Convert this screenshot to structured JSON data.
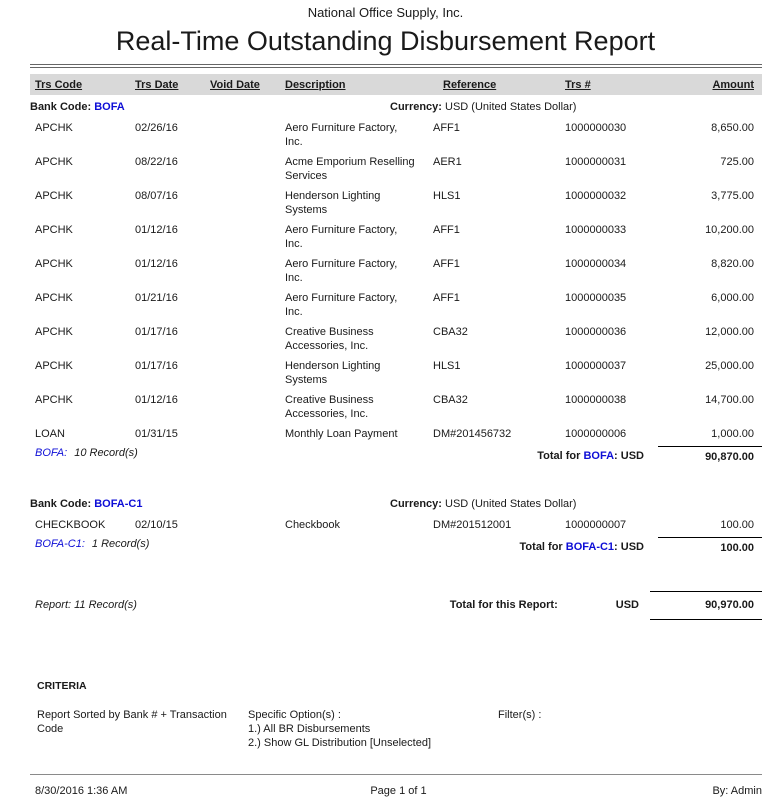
{
  "header": {
    "company": "National Office Supply, Inc.",
    "title": "Real-Time Outstanding Disbursement Report"
  },
  "table": {
    "columns": [
      "Trs Code",
      "Trs Date",
      "Void Date",
      "Description",
      "Reference",
      "Trs #",
      "Amount"
    ]
  },
  "sections": [
    {
      "bank_code_label": "Bank Code:",
      "bank_code": "BOFA",
      "currency_label": "Currency:",
      "currency": "USD (United States Dollar)",
      "rows": [
        {
          "trs_code": "APCHK",
          "trs_date": "02/26/16",
          "void_date": "",
          "description": "Aero Furniture Factory, Inc.",
          "reference": "AFF1",
          "trs_num": "1000000030",
          "amount": "8,650.00"
        },
        {
          "trs_code": "APCHK",
          "trs_date": "08/22/16",
          "void_date": "",
          "description": "Acme Emporium Reselling Services",
          "reference": "AER1",
          "trs_num": "1000000031",
          "amount": "725.00"
        },
        {
          "trs_code": "APCHK",
          "trs_date": "08/07/16",
          "void_date": "",
          "description": "Henderson Lighting Systems",
          "reference": "HLS1",
          "trs_num": "1000000032",
          "amount": "3,775.00"
        },
        {
          "trs_code": "APCHK",
          "trs_date": "01/12/16",
          "void_date": "",
          "description": "Aero Furniture Factory, Inc.",
          "reference": "AFF1",
          "trs_num": "1000000033",
          "amount": "10,200.00"
        },
        {
          "trs_code": "APCHK",
          "trs_date": "01/12/16",
          "void_date": "",
          "description": "Aero Furniture Factory, Inc.",
          "reference": "AFF1",
          "trs_num": "1000000034",
          "amount": "8,820.00"
        },
        {
          "trs_code": "APCHK",
          "trs_date": "01/21/16",
          "void_date": "",
          "description": "Aero Furniture Factory, Inc.",
          "reference": "AFF1",
          "trs_num": "1000000035",
          "amount": "6,000.00"
        },
        {
          "trs_code": "APCHK",
          "trs_date": "01/17/16",
          "void_date": "",
          "description": "Creative Business Accessories, Inc.",
          "reference": "CBA32",
          "trs_num": "1000000036",
          "amount": "12,000.00"
        },
        {
          "trs_code": "APCHK",
          "trs_date": "01/17/16",
          "void_date": "",
          "description": "Henderson Lighting Systems",
          "reference": "HLS1",
          "trs_num": "1000000037",
          "amount": "25,000.00"
        },
        {
          "trs_code": "APCHK",
          "trs_date": "01/12/16",
          "void_date": "",
          "description": "Creative Business Accessories, Inc.",
          "reference": "CBA32",
          "trs_num": "1000000038",
          "amount": "14,700.00"
        },
        {
          "trs_code": "LOAN",
          "trs_date": "01/31/15",
          "void_date": "",
          "description": "Monthly Loan Payment",
          "reference": "DM#201456732",
          "trs_num": "1000000006",
          "amount": "1,000.00"
        }
      ],
      "record_count": "10 Record(s)",
      "total_for_label": "Total for",
      "total_currency": "USD",
      "total_amount": "90,870.00"
    },
    {
      "bank_code_label": "Bank Code:",
      "bank_code": "BOFA-C1",
      "currency_label": "Currency:",
      "currency": "USD (United States Dollar)",
      "rows": [
        {
          "trs_code": "CHECKBOOK",
          "trs_date": "02/10/15",
          "void_date": "",
          "description": "Checkbook",
          "reference": "DM#201512001",
          "trs_num": "1000000007",
          "amount": "100.00"
        }
      ],
      "record_count": "1 Record(s)",
      "total_for_label": "Total for",
      "total_currency": "USD",
      "total_amount": "100.00"
    }
  ],
  "report_total": {
    "records": "Report: 11 Record(s)",
    "label": "Total for this Report:",
    "currency": "USD",
    "amount": "90,970.00"
  },
  "criteria": {
    "heading": "CRITERIA",
    "sort": "Report Sorted by Bank # + Transaction Code",
    "specific_options_label": "Specific Option(s) :",
    "options": [
      "1.) All BR Disbursements",
      "2.) Show GL Distribution [Unselected]"
    ],
    "filters_label": "Filter(s) :"
  },
  "footer": {
    "datetime": "8/30/2016 1:36 AM",
    "page": "Page 1 of 1",
    "by": "By: Admin"
  },
  "colors": {
    "link_blue": "#0d0dd6",
    "header_band": "#d9d9d9"
  }
}
